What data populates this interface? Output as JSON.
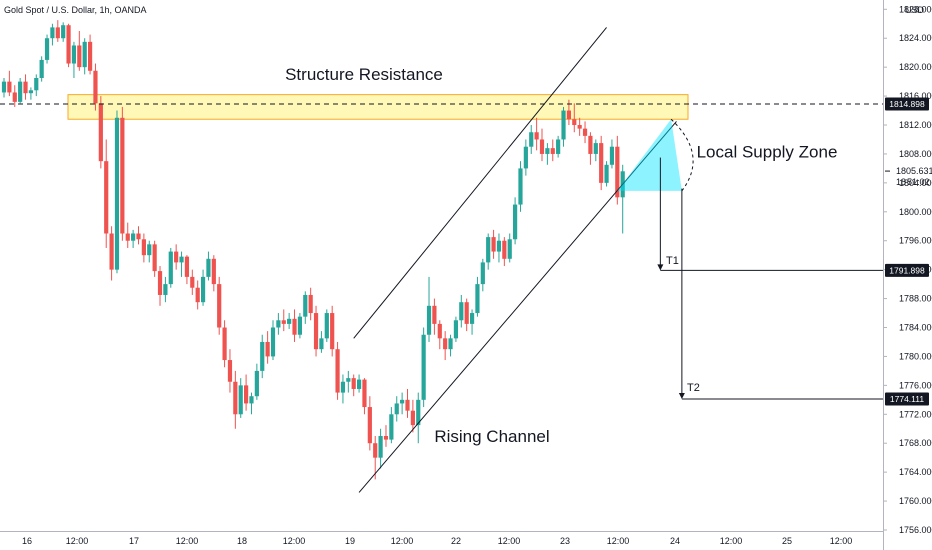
{
  "header": {
    "symbol": "Gold Spot / U.S. Dollar, 1h, OANDA",
    "currency": "USD"
  },
  "chart_data": {
    "type": "candlestick",
    "ylim": [
      1756,
      1828
    ],
    "y_ticks": [
      1756,
      1760,
      1764,
      1768,
      1772,
      1776,
      1780,
      1784,
      1788,
      1792,
      1796,
      1800,
      1804,
      1808,
      1812,
      1816,
      1820,
      1824,
      1828
    ],
    "y_tick_labels": [
      "1756.000",
      "1760.000",
      "1764.000",
      "1768.000",
      "1772.000",
      "1776.000",
      "1780.000",
      "1784.000",
      "1788.000",
      "1792.000",
      "1796.000",
      "1800.000",
      "1804.000",
      "1808.000",
      "1812.000",
      "1816.000",
      "1820.000",
      "1824.000",
      "1828.000"
    ],
    "x_tick_labels": [
      "16",
      "12:00",
      "17",
      "12:00",
      "18",
      "12:00",
      "19",
      "12:00",
      "22",
      "12:00",
      "23",
      "12:00",
      "24",
      "12:00",
      "25",
      "12:00"
    ],
    "bull_color": "#26a69a",
    "bear_color": "#ef5350",
    "candles": [
      [
        1816.5,
        1818.5,
        1815.8,
        1818.0
      ],
      [
        1818.0,
        1819.5,
        1816.0,
        1816.5
      ],
      [
        1816.5,
        1817.5,
        1814.5,
        1815.2
      ],
      [
        1815.2,
        1818.5,
        1815.0,
        1818.0
      ],
      [
        1818.0,
        1819.0,
        1815.5,
        1816.4
      ],
      [
        1816.4,
        1817.2,
        1815.5,
        1816.8
      ],
      [
        1816.8,
        1819.0,
        1816.0,
        1818.5
      ],
      [
        1818.5,
        1821.5,
        1818.0,
        1821.0
      ],
      [
        1821.0,
        1824.5,
        1820.5,
        1824.0
      ],
      [
        1824.0,
        1826.0,
        1823.0,
        1825.5
      ],
      [
        1825.5,
        1826.5,
        1823.5,
        1824.0
      ],
      [
        1824.0,
        1826.2,
        1823.5,
        1825.8
      ],
      [
        1825.8,
        1826.0,
        1820.0,
        1820.5
      ],
      [
        1820.5,
        1823.5,
        1818.5,
        1823.0
      ],
      [
        1823.0,
        1825.0,
        1819.5,
        1820.0
      ],
      [
        1820.0,
        1824.0,
        1819.0,
        1823.5
      ],
      [
        1823.5,
        1824.5,
        1819.0,
        1819.5
      ],
      [
        1819.5,
        1820.5,
        1814.0,
        1815.0
      ],
      [
        1815.0,
        1816.0,
        1806.0,
        1807.0
      ],
      [
        1807.0,
        1810.0,
        1795.0,
        1797.0
      ],
      [
        1797.0,
        1798.0,
        1790.5,
        1792.0
      ],
      [
        1792.0,
        1814.0,
        1791.5,
        1813.0
      ],
      [
        1813.0,
        1814.5,
        1796.0,
        1797.0
      ],
      [
        1797.0,
        1798.5,
        1795.0,
        1796.0
      ],
      [
        1796.0,
        1797.5,
        1795.0,
        1797.0
      ],
      [
        1797.0,
        1798.0,
        1795.5,
        1796.2
      ],
      [
        1796.2,
        1797.0,
        1793.0,
        1794.0
      ],
      [
        1794.0,
        1796.0,
        1793.0,
        1795.5
      ],
      [
        1795.5,
        1796.0,
        1791.0,
        1791.8
      ],
      [
        1791.8,
        1792.5,
        1787.0,
        1788.5
      ],
      [
        1788.5,
        1791.0,
        1787.5,
        1790.0
      ],
      [
        1790.0,
        1795.0,
        1789.5,
        1794.5
      ],
      [
        1794.5,
        1795.5,
        1792.0,
        1793.0
      ],
      [
        1793.0,
        1794.5,
        1791.0,
        1793.8
      ],
      [
        1793.8,
        1794.0,
        1790.0,
        1791.0
      ],
      [
        1791.0,
        1792.0,
        1788.5,
        1789.5
      ],
      [
        1789.5,
        1790.5,
        1786.5,
        1787.5
      ],
      [
        1787.5,
        1792.0,
        1787.0,
        1791.0
      ],
      [
        1791.0,
        1794.5,
        1790.5,
        1793.5
      ],
      [
        1793.5,
        1794.0,
        1789.0,
        1790.0
      ],
      [
        1790.0,
        1791.0,
        1783.0,
        1784.0
      ],
      [
        1784.0,
        1785.0,
        1778.5,
        1779.5
      ],
      [
        1779.5,
        1781.0,
        1775.0,
        1776.5
      ],
      [
        1776.5,
        1778.0,
        1770.0,
        1772.0
      ],
      [
        1772.0,
        1777.0,
        1771.5,
        1776.0
      ],
      [
        1776.0,
        1777.5,
        1772.5,
        1773.5
      ],
      [
        1773.5,
        1775.0,
        1772.0,
        1774.5
      ],
      [
        1774.5,
        1779.0,
        1774.0,
        1778.0
      ],
      [
        1778.0,
        1783.0,
        1777.0,
        1782.0
      ],
      [
        1782.0,
        1783.5,
        1779.0,
        1780.0
      ],
      [
        1780.0,
        1785.0,
        1779.5,
        1784.0
      ],
      [
        1784.0,
        1786.0,
        1783.0,
        1785.0
      ],
      [
        1785.0,
        1786.5,
        1783.5,
        1784.5
      ],
      [
        1784.5,
        1786.0,
        1783.8,
        1785.2
      ],
      [
        1785.2,
        1786.5,
        1782.0,
        1783.0
      ],
      [
        1783.0,
        1786.0,
        1782.5,
        1785.5
      ],
      [
        1785.5,
        1789.0,
        1784.5,
        1788.5
      ],
      [
        1788.5,
        1789.5,
        1785.0,
        1786.0
      ],
      [
        1786.0,
        1787.0,
        1780.0,
        1781.0
      ],
      [
        1781.0,
        1783.5,
        1780.5,
        1782.5
      ],
      [
        1782.5,
        1786.5,
        1782.0,
        1786.0
      ],
      [
        1786.0,
        1787.0,
        1780.0,
        1781.0
      ],
      [
        1781.0,
        1782.0,
        1774.0,
        1775.0
      ],
      [
        1775.0,
        1777.5,
        1773.5,
        1776.5
      ],
      [
        1776.5,
        1778.0,
        1775.0,
        1777.0
      ],
      [
        1777.0,
        1777.5,
        1774.5,
        1775.5
      ],
      [
        1775.5,
        1777.5,
        1775.0,
        1776.8
      ],
      [
        1776.8,
        1777.0,
        1772.0,
        1773.0
      ],
      [
        1773.0,
        1774.5,
        1767.0,
        1768.0
      ],
      [
        1768.0,
        1769.0,
        1763.0,
        1766.0
      ],
      [
        1766.0,
        1770.0,
        1764.5,
        1769.0
      ],
      [
        1769.0,
        1770.5,
        1767.5,
        1768.5
      ],
      [
        1768.5,
        1773.0,
        1768.0,
        1772.0
      ],
      [
        1772.0,
        1774.5,
        1771.0,
        1773.5
      ],
      [
        1773.5,
        1775.0,
        1772.0,
        1774.0
      ],
      [
        1774.0,
        1775.5,
        1771.5,
        1772.5
      ],
      [
        1772.5,
        1774.0,
        1769.5,
        1770.5
      ],
      [
        1770.5,
        1775.0,
        1768.0,
        1774.0
      ],
      [
        1774.0,
        1784.0,
        1773.0,
        1783.0
      ],
      [
        1783.0,
        1791.0,
        1782.0,
        1787.0
      ],
      [
        1787.0,
        1788.0,
        1783.0,
        1784.5
      ],
      [
        1784.5,
        1785.0,
        1781.0,
        1782.5
      ],
      [
        1782.5,
        1783.5,
        1779.5,
        1781.0
      ],
      [
        1781.0,
        1783.0,
        1780.0,
        1782.5
      ],
      [
        1782.5,
        1785.5,
        1782.0,
        1785.0
      ],
      [
        1785.0,
        1788.5,
        1784.0,
        1787.5
      ],
      [
        1787.5,
        1788.0,
        1783.5,
        1784.5
      ],
      [
        1784.5,
        1786.5,
        1783.0,
        1786.0
      ],
      [
        1786.0,
        1791.0,
        1785.5,
        1790.0
      ],
      [
        1790.0,
        1793.5,
        1789.0,
        1793.0
      ],
      [
        1793.0,
        1797.0,
        1792.0,
        1796.5
      ],
      [
        1796.5,
        1797.5,
        1793.5,
        1794.5
      ],
      [
        1794.5,
        1797.0,
        1793.0,
        1796.0
      ],
      [
        1796.0,
        1796.5,
        1792.5,
        1793.5
      ],
      [
        1793.5,
        1797.0,
        1793.0,
        1796.2
      ],
      [
        1796.2,
        1802.0,
        1795.5,
        1801.0
      ],
      [
        1801.0,
        1807.0,
        1800.0,
        1806.0
      ],
      [
        1806.0,
        1810.0,
        1805.0,
        1809.0
      ],
      [
        1809.0,
        1812.0,
        1808.0,
        1811.0
      ],
      [
        1811.0,
        1813.0,
        1808.5,
        1810.0
      ],
      [
        1810.0,
        1811.5,
        1807.0,
        1808.0
      ],
      [
        1808.0,
        1809.5,
        1806.5,
        1808.8
      ],
      [
        1808.8,
        1810.0,
        1807.0,
        1808.0
      ],
      [
        1808.0,
        1810.5,
        1807.5,
        1810.0
      ],
      [
        1810.0,
        1814.5,
        1809.0,
        1814.0
      ],
      [
        1814.0,
        1815.5,
        1812.0,
        1812.8
      ],
      [
        1812.8,
        1815.0,
        1811.0,
        1812.0
      ],
      [
        1812.0,
        1813.0,
        1810.5,
        1811.5
      ],
      [
        1811.5,
        1812.5,
        1809.5,
        1810.5
      ],
      [
        1810.5,
        1811.0,
        1806.5,
        1808.0
      ],
      [
        1808.0,
        1810.0,
        1807.0,
        1809.5
      ],
      [
        1809.5,
        1810.5,
        1803.0,
        1804.0
      ],
      [
        1804.0,
        1807.0,
        1803.5,
        1806.5
      ],
      [
        1806.5,
        1810.0,
        1806.0,
        1809.0
      ],
      [
        1809.0,
        1810.5,
        1801.0,
        1802.0
      ],
      [
        1802.0,
        1806.5,
        1797.0,
        1805.6
      ]
    ],
    "annotations": {
      "structure_resistance": "Structure Resistance",
      "rising_channel": "Rising Channel",
      "local_supply_zone": "Local Supply Zone",
      "t1": "T1",
      "t2": "T2"
    },
    "resistance_zone": [
      1812.8,
      1816.2
    ],
    "supply_zone": [
      1802.9,
      1812.8
    ],
    "dashed_level": 1814.898,
    "t1_level": 1791.898,
    "t2_level": 1774.111,
    "price_tags": {
      "dashed": "1814.898",
      "t1": "1791.898",
      "t2": "1774.111",
      "last_price": "1805.631",
      "countdown": "51:02",
      "countdown_prefix": "18"
    }
  }
}
